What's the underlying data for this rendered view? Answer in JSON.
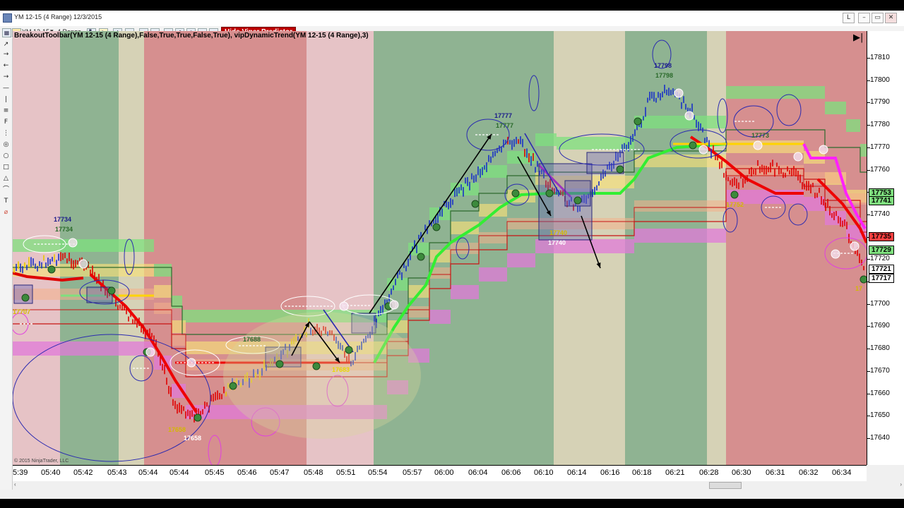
{
  "window": {
    "title": "YM 12-15 (4 Range)  12/3/2015",
    "controls": [
      "L",
      "–",
      "▭",
      "✕"
    ]
  },
  "toolbar": {
    "instrument": "YM 12-15",
    "period": "4 Range",
    "viper_button": "Hide Viper Predictor"
  },
  "chart": {
    "indicator_title": "BreakoutToolbar(YM 12-15 (4 Range),False,True,True,False,True), vipDynamicTrend(YM 12-15 (4 Range),3)",
    "copyright": "© 2015 NinjaTrader, LLC",
    "price_labels": [
      {
        "text": "17734",
        "color": "#1a1a8a"
      },
      {
        "text": "17734",
        "color": "#2a6a2a"
      },
      {
        "text": "17707",
        "color": "#d4b800"
      },
      {
        "text": "17688",
        "color": "#2a6a2a"
      },
      {
        "text": "17683",
        "color": "#e8d800"
      },
      {
        "text": "17658",
        "color": "#d4b800"
      },
      {
        "text": "17658",
        "color": "#ffffff"
      },
      {
        "text": "17777",
        "color": "#1a1a8a"
      },
      {
        "text": "17777",
        "color": "#2a6a2a"
      },
      {
        "text": "17740",
        "color": "#d4b800"
      },
      {
        "text": "17740",
        "color": "#ffffff"
      },
      {
        "text": "17798",
        "color": "#1a1a8a"
      },
      {
        "text": "17798",
        "color": "#2a6a2a"
      },
      {
        "text": "17773",
        "color": "#2a6a2a"
      },
      {
        "text": "17752",
        "color": "#d4b800"
      },
      {
        "text": "17",
        "color": "#d4b800"
      }
    ]
  },
  "y_axis": {
    "labels": [
      "17810",
      "17800",
      "17790",
      "17780",
      "17770",
      "17760",
      "17750",
      "17740",
      "17730",
      "17720",
      "17710",
      "17700",
      "17690",
      "17680",
      "17670",
      "17660",
      "17650",
      "17640"
    ],
    "badges": [
      {
        "text": "17753",
        "bg": "#7fe07f"
      },
      {
        "text": "17741",
        "bg": "#7fe07f"
      },
      {
        "text": "17735",
        "bg": "#ff4040"
      },
      {
        "text": "17729",
        "bg": "#7fe07f"
      },
      {
        "text": "17721",
        "bg": "#ffffff"
      },
      {
        "text": "17717",
        "bg": "#ffffff"
      }
    ]
  },
  "x_axis": {
    "labels": [
      "5:39",
      "05:40",
      "05:42",
      "05:43",
      "05:44",
      "05:44",
      "05:45",
      "05:46",
      "05:47",
      "05:48",
      "05:51",
      "05:54",
      "05:57",
      "06:00",
      "06:04",
      "06:06",
      "06:10",
      "06:14",
      "06:16",
      "06:18",
      "06:21",
      "06:28",
      "06:30",
      "06:31",
      "06:32",
      "06:34"
    ]
  },
  "colors": {
    "bull_bg": "#8fb392",
    "bear_bg": "#d68f8f",
    "neutral_bg": "#d6d2b6",
    "pinkish_bg": "#e6c3c6"
  }
}
